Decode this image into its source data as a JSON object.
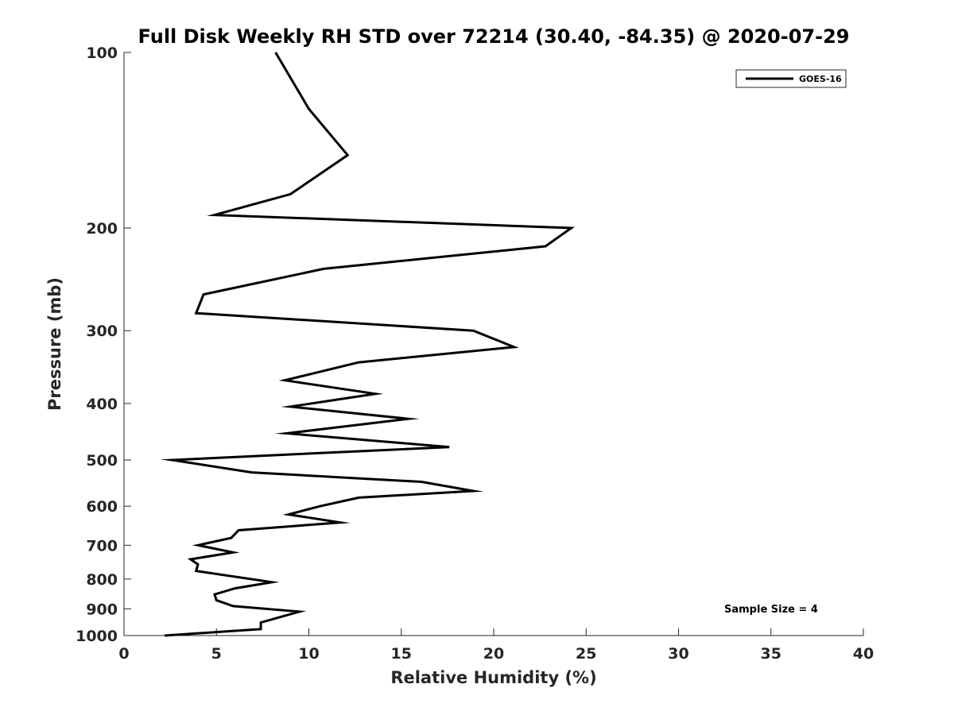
{
  "chart_data": {
    "type": "line",
    "title": "Full Disk Weekly RH STD over 72214 (30.40, -84.35) @ 2020-07-29",
    "xlabel": "Relative Humidity (%)",
    "ylabel": "Pressure (mb)",
    "xlim": [
      0,
      40
    ],
    "ylim": [
      100,
      1000
    ],
    "yscale": "log",
    "y_reversed": true,
    "x_ticks": [
      0,
      5,
      10,
      15,
      20,
      25,
      30,
      35,
      40
    ],
    "y_ticks": [
      100,
      200,
      300,
      400,
      500,
      600,
      700,
      800,
      900,
      1000
    ],
    "grid": false,
    "legend_position": "top-right",
    "annotation": "Sample Size = 4",
    "series": [
      {
        "name": "GOES-16",
        "color": "#000000",
        "points": [
          [
            8.2,
            100
          ],
          [
            10.0,
            125
          ],
          [
            12.1,
            150
          ],
          [
            9.0,
            175
          ],
          [
            4.9,
            190
          ],
          [
            24.2,
            200
          ],
          [
            22.8,
            215
          ],
          [
            10.8,
            235
          ],
          [
            4.3,
            260
          ],
          [
            3.9,
            280
          ],
          [
            18.9,
            300
          ],
          [
            21.1,
            320
          ],
          [
            12.7,
            340
          ],
          [
            8.7,
            365
          ],
          [
            13.6,
            385
          ],
          [
            9.0,
            405
          ],
          [
            15.4,
            425
          ],
          [
            8.8,
            450
          ],
          [
            17.6,
            475
          ],
          [
            2.6,
            500
          ],
          [
            6.9,
            525
          ],
          [
            16.1,
            545
          ],
          [
            18.9,
            565
          ],
          [
            12.7,
            580
          ],
          [
            10.6,
            600
          ],
          [
            8.9,
            620
          ],
          [
            11.7,
            640
          ],
          [
            6.2,
            660
          ],
          [
            5.8,
            680
          ],
          [
            4.0,
            700
          ],
          [
            5.9,
            720
          ],
          [
            3.6,
            740
          ],
          [
            4.0,
            755
          ],
          [
            3.9,
            775
          ],
          [
            8.0,
            810
          ],
          [
            6.0,
            830
          ],
          [
            4.9,
            850
          ],
          [
            5.0,
            870
          ],
          [
            5.9,
            890
          ],
          [
            9.5,
            910
          ],
          [
            8.7,
            925
          ],
          [
            7.4,
            950
          ],
          [
            7.4,
            975
          ],
          [
            2.2,
            1000
          ]
        ]
      }
    ]
  }
}
